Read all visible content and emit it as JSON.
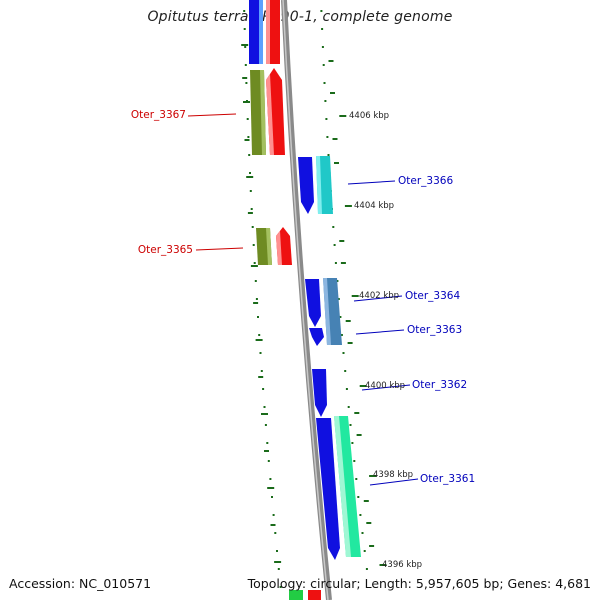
{
  "title": "Opitutus terrae PB90-1, complete genome",
  "footer": {
    "accession": "Accession: NC_010571",
    "summary": "Topology: circular; Length: 5,957,605 bp; Genes: 4,681"
  },
  "colors": {
    "backbone": "#8a8a8a",
    "tick": "#1a6b1a",
    "blue": "#1010e0",
    "red": "#ee1111",
    "olive": "#6e8b22",
    "cyan": "#20c8c8",
    "steelblue": "#4682b4",
    "mint": "#22e8a0",
    "green": "#22cc44",
    "label_red": "#cc0000",
    "label_blue": "#0000bb"
  },
  "ticks": [
    {
      "label": "4406 kbp"
    },
    {
      "label": "4404 kbp"
    },
    {
      "label": "4402 kbp"
    },
    {
      "label": "4400 kbp"
    },
    {
      "label": "4398 kbp"
    },
    {
      "label": "4396 kbp"
    }
  ],
  "genes": [
    {
      "label": "Oter_3367",
      "strand": "reverse"
    },
    {
      "label": "Oter_3366",
      "strand": "forward"
    },
    {
      "label": "Oter_3365",
      "strand": "reverse"
    },
    {
      "label": "Oter_3364",
      "strand": "forward"
    },
    {
      "label": "Oter_3363",
      "strand": "forward"
    },
    {
      "label": "Oter_3362",
      "strand": "forward"
    },
    {
      "label": "Oter_3361",
      "strand": "forward"
    }
  ]
}
